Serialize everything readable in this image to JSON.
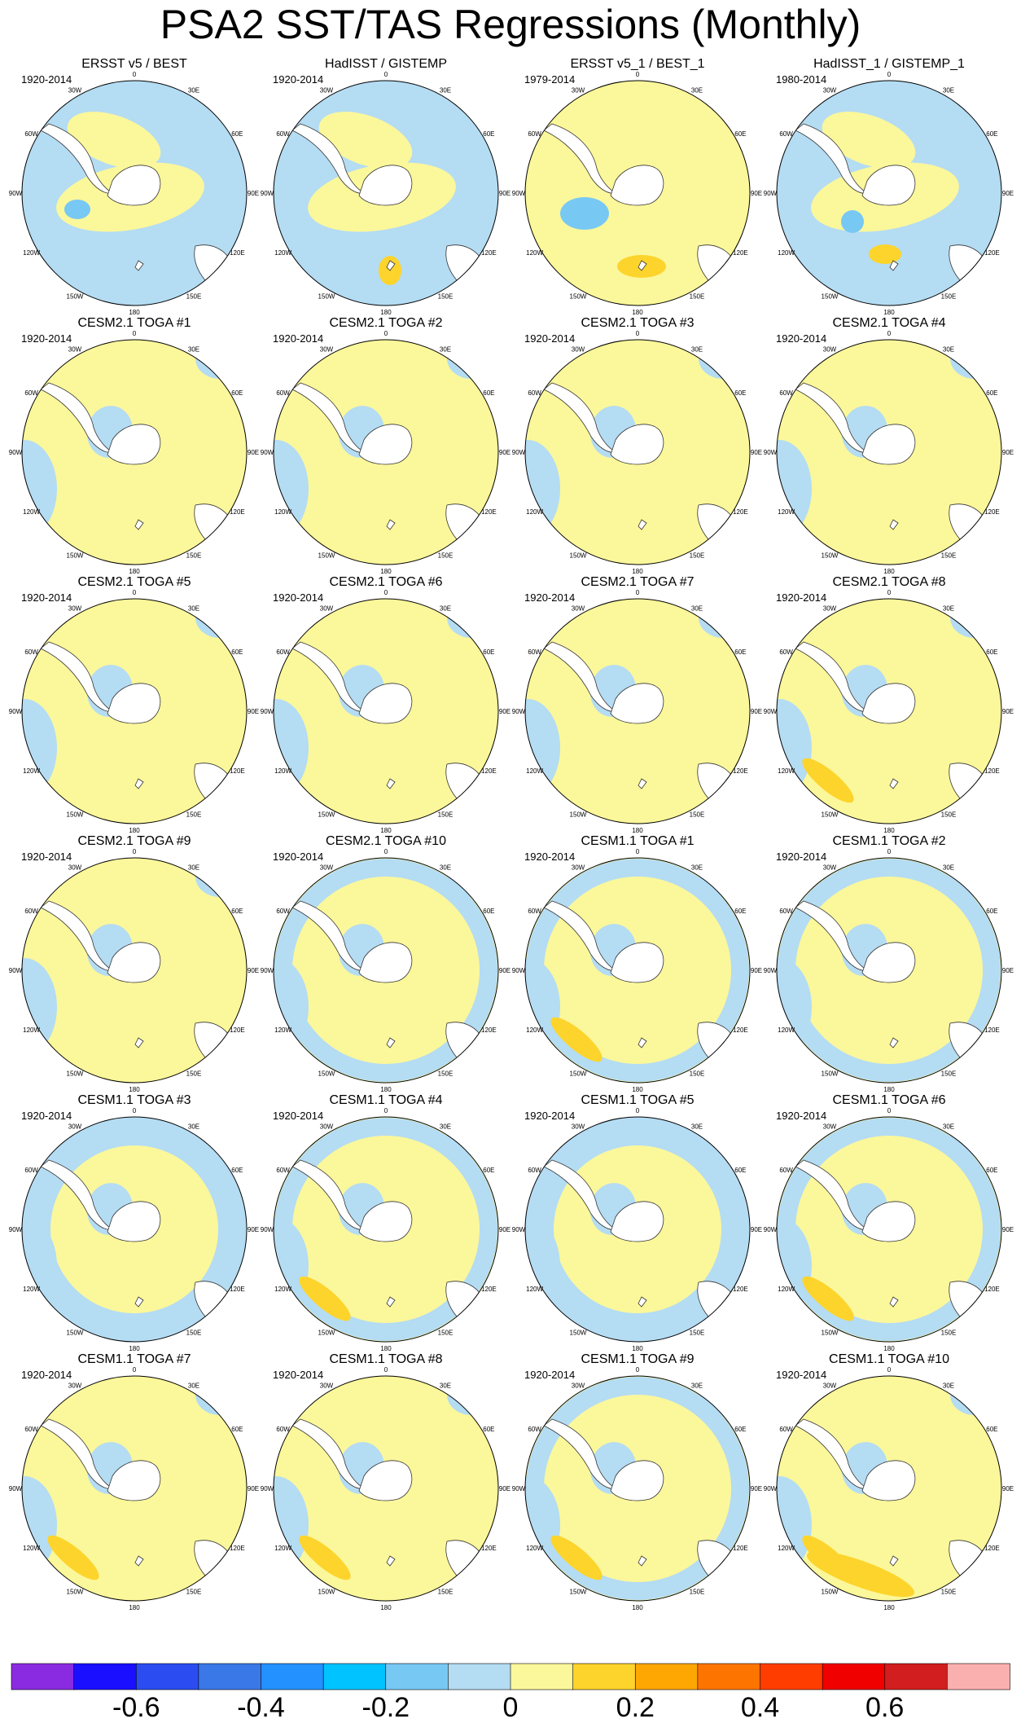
{
  "page_title": "PSA2 SST/TAS Regressions (Monthly)",
  "panels": [
    {
      "title": "ERSST v5 / BEST",
      "period": "1920-2014",
      "style": "obs1"
    },
    {
      "title": "HadISST / GISTEMP",
      "period": "1920-2014",
      "style": "obs2"
    },
    {
      "title": "ERSST v5_1 / BEST_1",
      "period": "1979-2014",
      "style": "obs3"
    },
    {
      "title": "HadISST_1 / GISTEMP_1",
      "period": "1980-2014",
      "style": "obs4"
    },
    {
      "title": "CESM2.1 TOGA #1",
      "period": "1920-2014",
      "style": "model"
    },
    {
      "title": "CESM2.1 TOGA #2",
      "period": "1920-2014",
      "style": "model"
    },
    {
      "title": "CESM2.1 TOGA #3",
      "period": "1920-2014",
      "style": "model"
    },
    {
      "title": "CESM2.1 TOGA #4",
      "period": "1920-2014",
      "style": "model"
    },
    {
      "title": "CESM2.1 TOGA #5",
      "period": "1920-2014",
      "style": "model"
    },
    {
      "title": "CESM2.1 TOGA #6",
      "period": "1920-2014",
      "style": "model"
    },
    {
      "title": "CESM2.1 TOGA #7",
      "period": "1920-2014",
      "style": "model"
    },
    {
      "title": "CESM2.1 TOGA #8",
      "period": "1920-2014",
      "style": "model_warm"
    },
    {
      "title": "CESM2.1 TOGA #9",
      "period": "1920-2014",
      "style": "model"
    },
    {
      "title": "CESM2.1 TOGA #10",
      "period": "1920-2014",
      "style": "ring"
    },
    {
      "title": "CESM1.1 TOGA #1",
      "period": "1920-2014",
      "style": "ring_warm"
    },
    {
      "title": "CESM1.1 TOGA #2",
      "period": "1920-2014",
      "style": "ring"
    },
    {
      "title": "CESM1.1 TOGA #3",
      "period": "1920-2014",
      "style": "ring_strong"
    },
    {
      "title": "CESM1.1 TOGA #4",
      "period": "1920-2014",
      "style": "ring_warm"
    },
    {
      "title": "CESM1.1 TOGA #5",
      "period": "1920-2014",
      "style": "ring_strong"
    },
    {
      "title": "CESM1.1 TOGA #6",
      "period": "1920-2014",
      "style": "ring_warm"
    },
    {
      "title": "CESM1.1 TOGA #7",
      "period": "1920-2014",
      "style": "model_warm"
    },
    {
      "title": "CESM1.1 TOGA #8",
      "period": "1920-2014",
      "style": "model_warm"
    },
    {
      "title": "CESM1.1 TOGA #9",
      "period": "1920-2014",
      "style": "ring_warm"
    },
    {
      "title": "CESM1.1 TOGA #10",
      "period": "1920-2014",
      "style": "model_warm_big"
    }
  ],
  "longitude_labels": [
    "0",
    "30E",
    "60E",
    "90E",
    "120E",
    "150E",
    "180",
    "150W",
    "120W",
    "90W",
    "60W",
    "30W"
  ],
  "chart_data": {
    "type": "heatmap",
    "title": "PSA2 SST/TAS Regressions (Monthly)",
    "projection": "south polar stereographic",
    "colorbar": {
      "colors": [
        "#8a2be2",
        "#1a10ff",
        "#2b4cf0",
        "#3a78e8",
        "#2391ff",
        "#00c3ff",
        "#78c8f4",
        "#b4dcf3",
        "#fbf79b",
        "#fdd42c",
        "#fea601",
        "#fe7400",
        "#ff3d00",
        "#f10000",
        "#d21e1e",
        "#fbb0b0"
      ],
      "tick_labels": [
        "-0.6",
        "-0.4",
        "-0.2",
        "0",
        "0.2",
        "0.4",
        "0.6"
      ],
      "tick_values": [
        -0.6,
        -0.4,
        -0.2,
        0,
        0.2,
        0.4,
        0.6
      ]
    }
  }
}
